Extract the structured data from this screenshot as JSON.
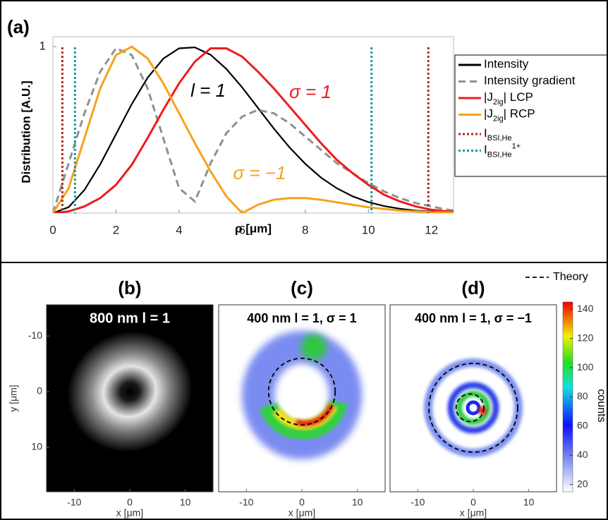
{
  "chart_data": [
    {
      "type": "line",
      "panel_label": "(a)",
      "y_label": "Distribution [A.U.]",
      "x_label": "ρ [μm]",
      "xlim": [
        0,
        12.7
      ],
      "xticks": [
        0,
        2,
        4,
        6,
        8,
        10,
        12
      ],
      "ylim": [
        0,
        1.06
      ],
      "yticks": [
        1
      ],
      "x": [
        0,
        0.5,
        1,
        1.5,
        2,
        2.5,
        3,
        3.5,
        4,
        4.5,
        5,
        5.5,
        6,
        6.5,
        7,
        7.5,
        8,
        8.5,
        9,
        9.5,
        10,
        10.5,
        11,
        11.5,
        12,
        12.5,
        13
      ],
      "series": [
        {
          "name": [
            {
              "text": "Intensity"
            }
          ],
          "color": "#000000",
          "dash": "solid",
          "values": [
            0,
            0.036,
            0.139,
            0.293,
            0.474,
            0.655,
            0.813,
            0.928,
            0.99,
            0.996,
            0.951,
            0.866,
            0.755,
            0.632,
            0.509,
            0.395,
            0.296,
            0.213,
            0.149,
            0.101,
            0.066,
            0.042,
            0.026,
            0.015,
            0.009,
            0.005,
            0.003
          ]
        },
        {
          "name": [
            {
              "text": "Intensity gradient"
            }
          ],
          "color": "#909090",
          "dash": "dashed",
          "values": [
            0,
            0.3,
            0.6,
            0.85,
            0.99,
            0.95,
            0.75,
            0.45,
            0.15,
            0.07,
            0.3,
            0.48,
            0.58,
            0.62,
            0.6,
            0.54,
            0.46,
            0.38,
            0.3,
            0.24,
            0.18,
            0.13,
            0.09,
            0.06,
            0.04,
            0.02,
            0.01
          ]
        },
        {
          "name": [
            {
              "text": "|J"
            },
            {
              "text": "2ig",
              "style": "sub"
            },
            {
              "text": "| LCP"
            }
          ],
          "color": "#ee1c1c",
          "dash": "solid",
          "values": [
            0,
            0.01,
            0.04,
            0.09,
            0.17,
            0.29,
            0.45,
            0.62,
            0.78,
            0.91,
            0.99,
            0.99,
            0.94,
            0.85,
            0.75,
            0.64,
            0.53,
            0.42,
            0.32,
            0.24,
            0.17,
            0.11,
            0.07,
            0.04,
            0.02,
            0.01,
            0.005
          ]
        },
        {
          "name": [
            {
              "text": "|J"
            },
            {
              "text": "2ig",
              "style": "sub"
            },
            {
              "text": "| RCP"
            }
          ],
          "color": "#f7a21b",
          "dash": "solid",
          "values": [
            0,
            0.15,
            0.45,
            0.75,
            0.95,
            1.0,
            0.93,
            0.78,
            0.6,
            0.42,
            0.25,
            0.1,
            0,
            0.05,
            0.08,
            0.09,
            0.09,
            0.08,
            0.065,
            0.05,
            0.035,
            0.025,
            0.015,
            0.01,
            0.005,
            0.003,
            0.001
          ]
        },
        {
          "name": [
            {
              "text": "I"
            },
            {
              "text": "BSI,He",
              "style": "sub"
            }
          ],
          "color": "#b02a2a",
          "dash": "dotted",
          "vlines": [
            0.3,
            11.9
          ]
        },
        {
          "name": [
            {
              "text": "I"
            },
            {
              "text": "BSI,He",
              "style": "sub"
            },
            {
              "text": "1+",
              "style": "sup"
            }
          ],
          "color": "#1a9a9a",
          "dash": "dotted",
          "vlines": [
            0.7,
            10.1
          ]
        }
      ],
      "annotations": [
        {
          "text": "l = 1",
          "color": "#000000"
        },
        {
          "text": "σ = 1",
          "color": "#ee1c1c"
        },
        {
          "text": "σ = −1",
          "color": "#f7a21b"
        }
      ]
    },
    {
      "type": "image",
      "panel_label": "(b)",
      "image_label": "800 nm  l = 1",
      "x_label": "x [μm]",
      "y_label": "y [μm]",
      "xlim": [
        -15,
        15
      ],
      "xticks": [
        -10,
        0,
        10
      ],
      "ylim": [
        -15.6,
        18
      ],
      "yticks": [
        -10,
        0,
        10
      ]
    },
    {
      "type": "image",
      "panel_label": "(c)",
      "image_label": "400 nm l = 1, σ = 1",
      "x_label": "x [μm]",
      "xlim": [
        -15,
        15
      ],
      "xticks": [
        -10,
        0,
        10
      ],
      "ylim": [
        -15.6,
        18
      ],
      "theory_circles": [
        {
          "cx": 0,
          "cy": 0,
          "r": 6
        }
      ]
    },
    {
      "type": "image",
      "panel_label": "(d)",
      "image_label": "400 nm l = 1, σ = −1",
      "x_label": "x [μm]",
      "xlim": [
        -15,
        15
      ],
      "xticks": [
        -10,
        0,
        10
      ],
      "ylim": [
        -15.6,
        18
      ],
      "theory_circles": [
        {
          "cx": 0,
          "cy": 2.9,
          "r": 8
        },
        {
          "cx": -0.6,
          "cy": 2.9,
          "r": 2.5
        }
      ],
      "theory_label": "Theory",
      "colorbar": {
        "lim": [
          15,
          145
        ],
        "ticks": [
          20,
          40,
          60,
          80,
          100,
          120,
          140
        ],
        "label": "counts"
      }
    }
  ]
}
